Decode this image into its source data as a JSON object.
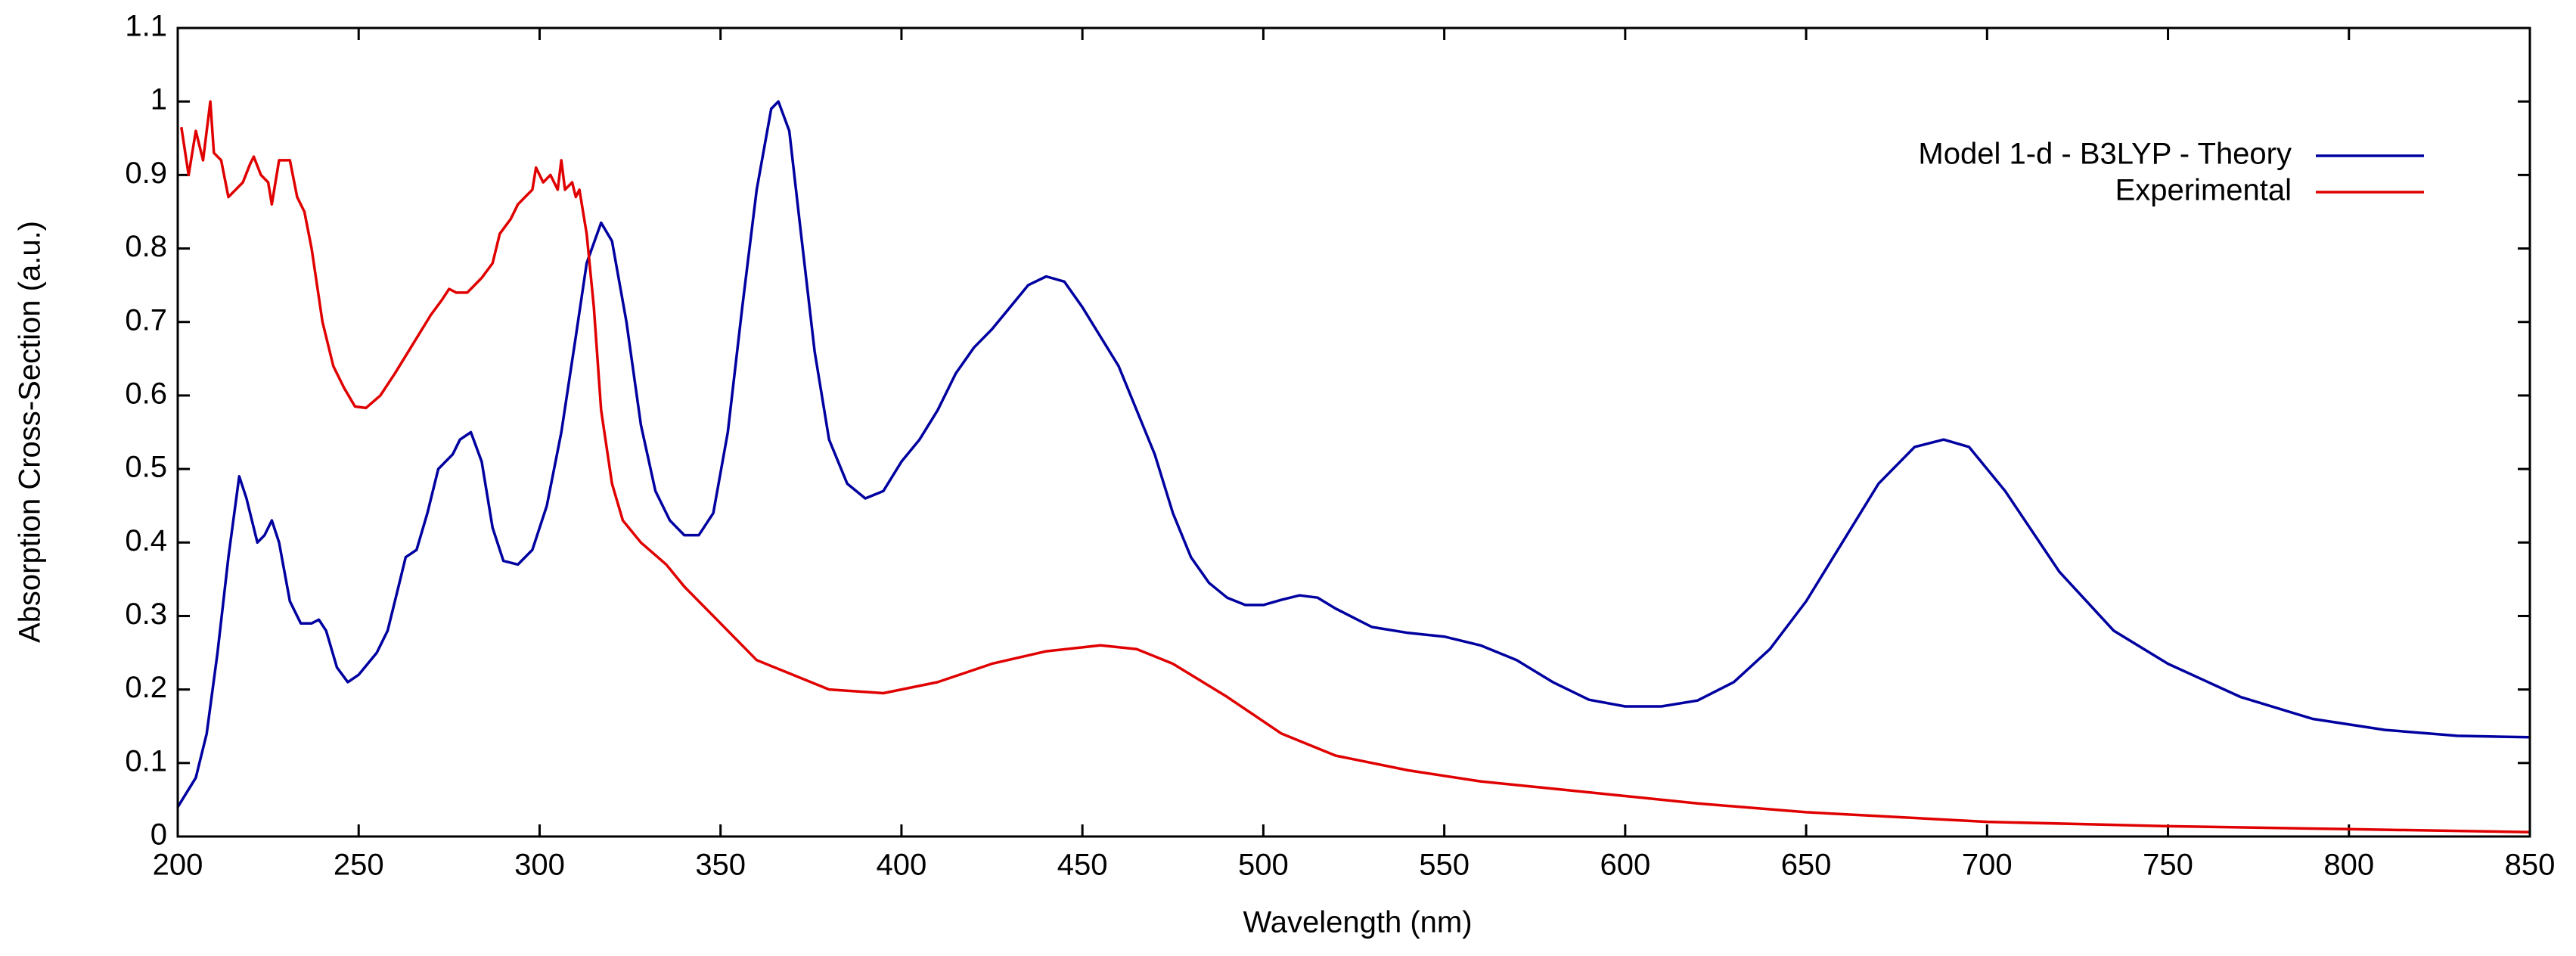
{
  "chart_data": {
    "type": "line",
    "xlabel": "Wavelength (nm)",
    "ylabel": "Absorption Cross-Section (a.u.)",
    "xlim": [
      200,
      850
    ],
    "xticks": [
      200,
      250,
      300,
      350,
      400,
      450,
      500,
      550,
      600,
      650,
      700,
      750,
      800,
      850
    ],
    "ylim": [
      0,
      1.1
    ],
    "yticks": [
      0,
      0.1,
      0.2,
      0.3,
      0.4,
      0.5,
      0.6,
      0.7,
      0.8,
      0.9,
      1,
      1.1
    ],
    "legend": "top right",
    "series": [
      {
        "name": "Model 1-d - B3LYP - Theory",
        "color": "#0000a0",
        "x": [
          200,
          205,
          208,
          211,
          214,
          217,
          219,
          222,
          224,
          226,
          228,
          231,
          234,
          237,
          239,
          241,
          244,
          247,
          250,
          255,
          258,
          261,
          263,
          266,
          269,
          272,
          276,
          278,
          281,
          284,
          287,
          290,
          294,
          298,
          302,
          306,
          310,
          313,
          317,
          320,
          324,
          328,
          332,
          336,
          340,
          344,
          348,
          352,
          356,
          360,
          364,
          366,
          369,
          372,
          376,
          380,
          385,
          390,
          395,
          400,
          405,
          410,
          415,
          420,
          425,
          430,
          435,
          440,
          445,
          450,
          460,
          470,
          475,
          480,
          485,
          490,
          495,
          500,
          505,
          510,
          515,
          520,
          530,
          540,
          550,
          560,
          570,
          580,
          590,
          600,
          610,
          620,
          630,
          640,
          650,
          660,
          670,
          680,
          688,
          695,
          705,
          720,
          735,
          750,
          770,
          790,
          810,
          830,
          850
        ],
        "values": [
          0.04,
          0.08,
          0.14,
          0.25,
          0.38,
          0.49,
          0.46,
          0.4,
          0.41,
          0.43,
          0.4,
          0.32,
          0.29,
          0.29,
          0.295,
          0.28,
          0.23,
          0.21,
          0.22,
          0.25,
          0.28,
          0.34,
          0.38,
          0.39,
          0.44,
          0.5,
          0.52,
          0.54,
          0.55,
          0.51,
          0.42,
          0.375,
          0.37,
          0.39,
          0.45,
          0.55,
          0.68,
          0.78,
          0.835,
          0.81,
          0.7,
          0.56,
          0.47,
          0.43,
          0.41,
          0.41,
          0.44,
          0.55,
          0.72,
          0.88,
          0.99,
          1.0,
          0.96,
          0.83,
          0.66,
          0.54,
          0.48,
          0.46,
          0.47,
          0.51,
          0.54,
          0.58,
          0.63,
          0.665,
          0.69,
          0.72,
          0.75,
          0.762,
          0.755,
          0.72,
          0.64,
          0.52,
          0.44,
          0.38,
          0.345,
          0.325,
          0.315,
          0.315,
          0.322,
          0.328,
          0.325,
          0.31,
          0.285,
          0.277,
          0.272,
          0.26,
          0.24,
          0.21,
          0.186,
          0.177,
          0.177,
          0.185,
          0.21,
          0.255,
          0.32,
          0.4,
          0.48,
          0.53,
          0.54,
          0.53,
          0.47,
          0.36,
          0.28,
          0.235,
          0.19,
          0.16,
          0.145,
          0.137,
          0.135
        ]
      },
      {
        "name": "Experimental",
        "color": "#e00000",
        "x": [
          201,
          203,
          205,
          207,
          209,
          210,
          212,
          214,
          216,
          218,
          220,
          221,
          223,
          225,
          226,
          228,
          231,
          233,
          235,
          237,
          240,
          243,
          246,
          249,
          252,
          256,
          260,
          265,
          270,
          273,
          275,
          277,
          280,
          284,
          287,
          289,
          292,
          294,
          296,
          298,
          299,
          301,
          303,
          305,
          306,
          307,
          309,
          310,
          311,
          313,
          315,
          317,
          320,
          323,
          328,
          335,
          340,
          350,
          360,
          370,
          380,
          395,
          410,
          425,
          440,
          455,
          465,
          475,
          490,
          505,
          520,
          540,
          560,
          580,
          600,
          620,
          650,
          700,
          750,
          800,
          850
        ],
        "values": [
          0.965,
          0.9,
          0.96,
          0.92,
          1.0,
          0.93,
          0.92,
          0.87,
          0.88,
          0.89,
          0.915,
          0.925,
          0.9,
          0.89,
          0.86,
          0.92,
          0.92,
          0.87,
          0.85,
          0.8,
          0.7,
          0.64,
          0.61,
          0.585,
          0.583,
          0.6,
          0.63,
          0.67,
          0.71,
          0.73,
          0.745,
          0.74,
          0.74,
          0.76,
          0.78,
          0.82,
          0.84,
          0.86,
          0.87,
          0.88,
          0.91,
          0.89,
          0.9,
          0.88,
          0.92,
          0.88,
          0.89,
          0.87,
          0.88,
          0.82,
          0.72,
          0.58,
          0.48,
          0.43,
          0.4,
          0.37,
          0.34,
          0.29,
          0.24,
          0.22,
          0.2,
          0.195,
          0.21,
          0.235,
          0.252,
          0.26,
          0.255,
          0.235,
          0.19,
          0.14,
          0.11,
          0.09,
          0.075,
          0.065,
          0.055,
          0.045,
          0.033,
          0.02,
          0.014,
          0.01,
          0.006
        ]
      }
    ]
  }
}
